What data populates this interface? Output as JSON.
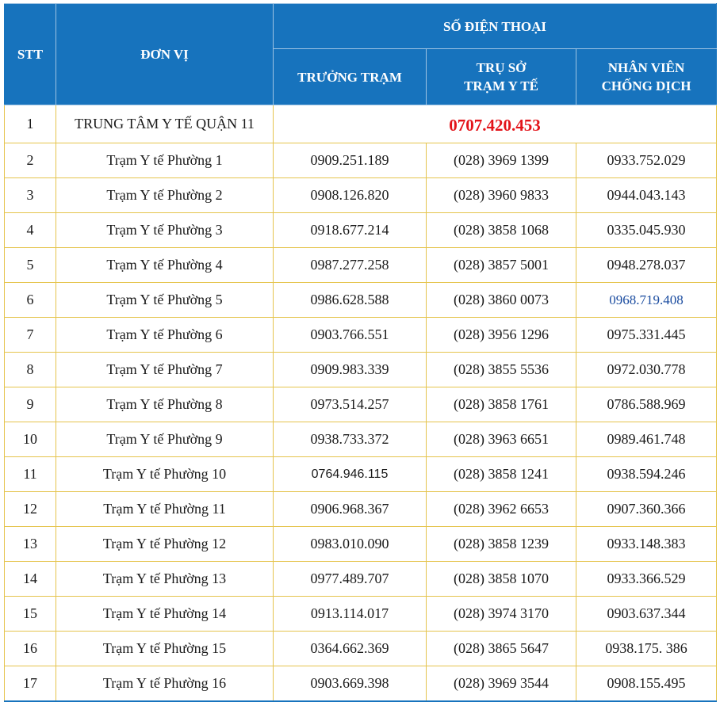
{
  "header": {
    "stt": "STT",
    "unit": "ĐƠN VỊ",
    "phone_group": "SỐ ĐIỆN THOẠI",
    "col_head_station": "TRƯỞNG TRẠM",
    "col_office_line1": "TRỤ SỞ",
    "col_office_line2": "TRẠM Y TẾ",
    "col_staff_line1": "NHÂN VIÊN",
    "col_staff_line2": "CHỐNG DỊCH"
  },
  "center": {
    "stt": "1",
    "unit": "TRUNG TÂM Y TẾ QUẬN 11",
    "hotline": "0707.420.453"
  },
  "rows": [
    {
      "stt": "2",
      "unit": "Trạm Y tế Phường 1",
      "head": "0909.251.189",
      "office": "(028) 3969 1399",
      "staff": "0933.752.029"
    },
    {
      "stt": "3",
      "unit": "Trạm Y tế Phường 2",
      "head": "0908.126.820",
      "office": "(028) 3960 9833",
      "staff": "0944.043.143"
    },
    {
      "stt": "4",
      "unit": "Trạm Y tế Phường 3",
      "head": "0918.677.214",
      "office": "(028) 3858 1068",
      "staff": "0335.045.930"
    },
    {
      "stt": "5",
      "unit": "Trạm Y tế Phường 4",
      "head": "0987.277.258",
      "office": "(028) 3857 5001",
      "staff": "0948.278.037"
    },
    {
      "stt": "6",
      "unit": "Trạm Y tế Phường 5",
      "head": "0986.628.588",
      "office": "(028) 3860 0073",
      "staff": "0968.719.408"
    },
    {
      "stt": "7",
      "unit": "Trạm Y tế Phường 6",
      "head": "0903.766.551",
      "office": "(028) 3956 1296",
      "staff": "0975.331.445"
    },
    {
      "stt": "8",
      "unit": "Trạm Y tế Phường 7",
      "head": "0909.983.339",
      "office": "(028) 3855 5536",
      "staff": "0972.030.778"
    },
    {
      "stt": "9",
      "unit": "Trạm Y tế Phường 8",
      "head": "0973.514.257",
      "office": "(028) 3858 1761",
      "staff": "0786.588.969"
    },
    {
      "stt": "10",
      "unit": "Trạm Y tế Phường 9",
      "head": "0938.733.372",
      "office": "(028) 3963 6651",
      "staff": "0989.461.748"
    },
    {
      "stt": "11",
      "unit": "Trạm Y tế Phường 10",
      "head": "0764.946.115",
      "office": "(028) 3858 1241",
      "staff": "0938.594.246"
    },
    {
      "stt": "12",
      "unit": "Trạm Y tế Phường 11",
      "head": "0906.968.367",
      "office": "(028) 3962 6653",
      "staff": "0907.360.366"
    },
    {
      "stt": "13",
      "unit": "Trạm Y tế Phường 12",
      "head": "0983.010.090",
      "office": "(028) 3858 1239",
      "staff": "0933.148.383"
    },
    {
      "stt": "14",
      "unit": "Trạm Y tế Phường 13",
      "head": "0977.489.707",
      "office": "(028) 3858 1070",
      "staff": "0933.366.529"
    },
    {
      "stt": "15",
      "unit": "Trạm Y tế Phường 14",
      "head": "0913.114.017",
      "office": "(028) 3974 3170",
      "staff": "0903.637.344"
    },
    {
      "stt": "16",
      "unit": "Trạm Y tế Phường 15",
      "head": "0364.662.369",
      "office": "(028) 3865 5647",
      "staff": "0938.175. 386"
    },
    {
      "stt": "17",
      "unit": "Trạm Y tế Phường 16",
      "head": "0903.669.398",
      "office": "(028) 3969 3544",
      "staff": "0908.155.495"
    }
  ],
  "colors": {
    "header_bg": "#1773bd",
    "grid_line": "#e5c44d",
    "hotline": "#e3141a"
  }
}
